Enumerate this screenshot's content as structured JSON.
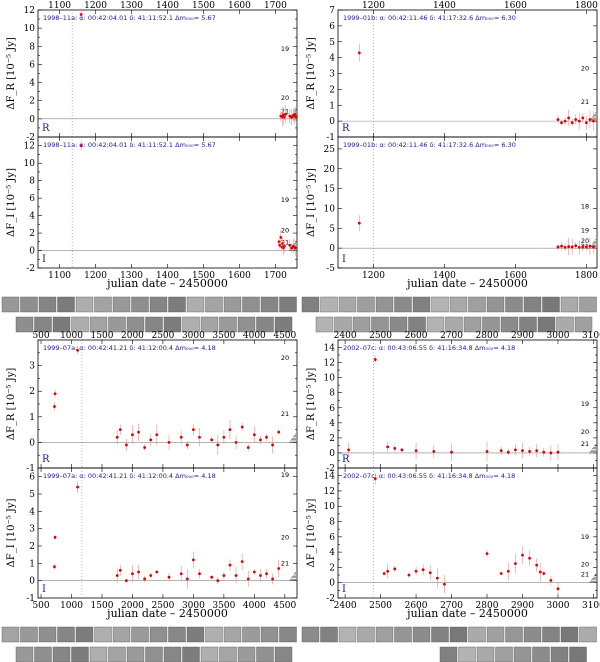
{
  "chart_data": [
    {
      "id": "p1",
      "type": "scatter",
      "title": "",
      "xlabel": "julian date – 2450000",
      "top_ticks": [
        1100,
        1200,
        1300,
        1400,
        1500,
        1600,
        1700
      ],
      "bottom_ticks": [
        1100,
        1200,
        1300,
        1400,
        1500,
        1600,
        1700
      ],
      "xlim": [
        1040,
        1760
      ],
      "event_x": 1135,
      "thumbnails": {
        "top": 16,
        "bottom": 16
      },
      "panels": [
        {
          "band_label": "R",
          "info": "1998–11a:   α: 00:42:04.01   δ: 41:11:52.1   Δm₀₀₀= 5.67",
          "ylabel": "ΔF_R [10⁻⁵ Jy]",
          "ylim": [
            -2,
            12
          ],
          "yticks": [
            -2,
            -1,
            0,
            1,
            2,
            3,
            4,
            5,
            6,
            7,
            8,
            9,
            10,
            11,
            12
          ],
          "ytick_labels": [
            -2,
            0,
            2,
            4,
            6,
            8,
            10,
            12
          ],
          "mag_labels": [
            {
              "text": "19",
              "y": 7.7
            },
            {
              "text": "20",
              "y": 2.3
            },
            {
              "text": "21",
              "y": 0.8
            }
          ],
          "points": [
            [
              1160,
              11.5
            ],
            [
              1715,
              0.3
            ],
            [
              1720,
              0.2
            ],
            [
              1722,
              0.4
            ],
            [
              1725,
              0.2
            ],
            [
              1728,
              0.5
            ],
            [
              1740,
              0.3
            ],
            [
              1745,
              0.2
            ],
            [
              1750,
              0.4
            ],
            [
              1752,
              0.3
            ],
            [
              1755,
              0.5
            ],
            [
              1758,
              0.2
            ]
          ]
        },
        {
          "band_label": "I",
          "info": "1998–11a:   α: 00:42:04.01   δ: 41:11:52.1   Δm₀₀₀= 5.67",
          "ylabel": "ΔF_I [10⁻⁵ Jy]",
          "ylim": [
            -2,
            13
          ],
          "yticks": [
            -2,
            -1,
            0,
            1,
            2,
            3,
            4,
            5,
            6,
            7,
            8,
            9,
            10,
            11,
            12,
            13
          ],
          "ytick_labels": [
            -2,
            0,
            2,
            4,
            6,
            8,
            10,
            12
          ],
          "mag_labels": [
            {
              "text": "19",
              "y": 5.8
            },
            {
              "text": "20",
              "y": 2.3
            },
            {
              "text": "21",
              "y": 0.9
            }
          ],
          "points": [
            [
              1160,
              12.0
            ],
            [
              1710,
              1.0
            ],
            [
              1712,
              0.6
            ],
            [
              1715,
              1.5
            ],
            [
              1718,
              0.4
            ],
            [
              1720,
              0.8
            ],
            [
              1723,
              0.3
            ],
            [
              1725,
              0.5
            ],
            [
              1740,
              0.6
            ],
            [
              1745,
              0.3
            ],
            [
              1750,
              0.5
            ],
            [
              1755,
              0.3
            ]
          ]
        }
      ]
    },
    {
      "id": "p2",
      "type": "scatter",
      "title": "",
      "xlabel": "julian date – 2450000",
      "top_ticks": [
        1200,
        1400,
        1600,
        1800
      ],
      "bottom_ticks": [
        1200,
        1400,
        1600,
        1800
      ],
      "xlim": [
        1100,
        1830
      ],
      "event_x": 1200,
      "thumbnails": {
        "top": 16,
        "bottom": 16
      },
      "panels": [
        {
          "band_label": "R",
          "info": "1999–01b:   α: 00:42:11.46   δ: 41:17:32.6   Δm₀₀₀= 6.30",
          "ylabel": "ΔF_R [10⁻⁵ Jy]",
          "ylim": [
            -1,
            7
          ],
          "yticks": [
            -1,
            0,
            1,
            2,
            3,
            4,
            5,
            6,
            7
          ],
          "ytick_labels": [
            -1,
            0,
            1,
            2,
            3,
            4,
            5,
            6,
            7
          ],
          "mag_labels": [
            {
              "text": "20",
              "y": 3.3
            },
            {
              "text": "21",
              "y": 1.2
            }
          ],
          "points": [
            [
              1160,
              4.3
            ],
            [
              1720,
              0.1
            ],
            [
              1730,
              -0.1
            ],
            [
              1740,
              0.0
            ],
            [
              1750,
              0.2
            ],
            [
              1760,
              -0.1
            ],
            [
              1770,
              0.1
            ],
            [
              1780,
              0.0
            ],
            [
              1790,
              0.2
            ],
            [
              1800,
              -0.1
            ],
            [
              1810,
              0.1
            ],
            [
              1820,
              0.0
            ]
          ]
        },
        {
          "band_label": "I",
          "info": "1999–01b:   α: 00:42:11.46   δ: 41:17:32.6   Δm₀₀₀= 6.30",
          "ylabel": "ΔF_I [10⁻⁵ Jy]",
          "ylim": [
            -5,
            28
          ],
          "yticks": [
            -5,
            0,
            5,
            10,
            15,
            20,
            25
          ],
          "ytick_labels": [
            -5,
            0,
            5,
            10,
            15,
            20,
            25
          ],
          "mag_labels": [
            {
              "text": "18",
              "y": 10.5
            },
            {
              "text": "19",
              "y": 4.5
            },
            {
              "text": "20",
              "y": 1.8
            },
            {
              "text": "21",
              "y": 0.4
            }
          ],
          "points": [
            [
              1160,
              6.3
            ],
            [
              1720,
              0.3
            ],
            [
              1730,
              0.5
            ],
            [
              1740,
              0.2
            ],
            [
              1750,
              0.4
            ],
            [
              1760,
              0.3
            ],
            [
              1770,
              0.6
            ],
            [
              1780,
              0.2
            ],
            [
              1790,
              0.4
            ],
            [
              1800,
              0.3
            ],
            [
              1810,
              0.5
            ],
            [
              1820,
              0.3
            ]
          ]
        }
      ]
    },
    {
      "id": "p3",
      "type": "scatter",
      "title": "",
      "xlabel": "julian date – 2450000",
      "top_ticks": [
        500,
        1000,
        1500,
        2000,
        2500,
        3000,
        3500,
        4000,
        4500
      ],
      "bottom_ticks": [
        500,
        1000,
        1500,
        2000,
        2500,
        3000,
        3500,
        4000,
        4500
      ],
      "xlim": [
        450,
        4700
      ],
      "event_x": 1170,
      "thumbnails": {
        "top": 16,
        "bottom": 16
      },
      "panels": [
        {
          "band_label": "R",
          "info": "1999–07a:   α: 00:42:41.21   δ: 41:12:00.4   Δm₀₀₀= 4.18",
          "ylabel": "ΔF_R [10⁻⁵ Jy]",
          "ylim": [
            -1,
            4
          ],
          "yticks": [
            -1,
            -0.5,
            0,
            0.5,
            1,
            1.5,
            2,
            2.5,
            3,
            3.5,
            4
          ],
          "ytick_labels": [
            -1,
            0,
            1,
            2,
            3
          ],
          "mag_labels": [
            {
              "text": "20",
              "y": 3.3
            },
            {
              "text": "21",
              "y": 1.1
            }
          ],
          "points": [
            [
              720,
              1.4
            ],
            [
              730,
              1.9
            ],
            [
              1100,
              3.6
            ],
            [
              1750,
              0.2
            ],
            [
              1800,
              0.5
            ],
            [
              1900,
              -0.1
            ],
            [
              2000,
              0.3
            ],
            [
              2100,
              0.4
            ],
            [
              2200,
              -0.2
            ],
            [
              2300,
              0.1
            ],
            [
              2400,
              0.3
            ],
            [
              2600,
              0.0
            ],
            [
              2800,
              0.2
            ],
            [
              2900,
              -0.1
            ],
            [
              3000,
              0.5
            ],
            [
              3100,
              0.2
            ],
            [
              3300,
              0.1
            ],
            [
              3400,
              -0.1
            ],
            [
              3500,
              0.2
            ],
            [
              3600,
              0.5
            ],
            [
              3700,
              0.0
            ],
            [
              3800,
              0.6
            ],
            [
              3900,
              -0.2
            ],
            [
              4000,
              0.3
            ],
            [
              4100,
              0.1
            ],
            [
              4200,
              0.2
            ],
            [
              4300,
              -0.1
            ],
            [
              4400,
              0.4
            ]
          ]
        },
        {
          "band_label": "I",
          "info": "1999–07a:   α: 00:42:41.21   δ: 41:12:00.4   Δm₀₀₀= 4.18",
          "ylabel": "ΔF_I [10⁻⁵ Jy]",
          "ylim": [
            -1,
            6.5
          ],
          "yticks": [
            -1,
            0,
            1,
            2,
            3,
            4,
            5,
            6
          ],
          "ytick_labels": [
            -1,
            0,
            1,
            2,
            3,
            4,
            5,
            6
          ],
          "mag_labels": [
            {
              "text": "19",
              "y": 6.1
            },
            {
              "text": "20",
              "y": 2.5
            },
            {
              "text": "21",
              "y": 1.0
            }
          ],
          "points": [
            [
              720,
              0.8
            ],
            [
              730,
              2.5
            ],
            [
              1100,
              5.4
            ],
            [
              1750,
              0.3
            ],
            [
              1800,
              0.6
            ],
            [
              1900,
              0.0
            ],
            [
              2000,
              0.4
            ],
            [
              2100,
              0.5
            ],
            [
              2200,
              0.1
            ],
            [
              2300,
              0.3
            ],
            [
              2400,
              0.5
            ],
            [
              2600,
              0.2
            ],
            [
              2800,
              0.4
            ],
            [
              2900,
              0.1
            ],
            [
              3000,
              1.2
            ],
            [
              3100,
              0.4
            ],
            [
              3300,
              0.2
            ],
            [
              3400,
              0.0
            ],
            [
              3500,
              0.3
            ],
            [
              3600,
              0.9
            ],
            [
              3700,
              0.3
            ],
            [
              3800,
              1.1
            ],
            [
              3900,
              0.1
            ],
            [
              4000,
              0.5
            ],
            [
              4100,
              0.3
            ],
            [
              4200,
              0.4
            ],
            [
              4300,
              0.1
            ],
            [
              4400,
              0.7
            ]
          ]
        }
      ]
    },
    {
      "id": "p4",
      "type": "scatter",
      "title": "",
      "xlabel": "julian date – 2450000",
      "top_ticks": [
        2400,
        2500,
        2600,
        2700,
        2800,
        2900,
        3000,
        3100
      ],
      "bottom_ticks": [
        2400,
        2500,
        2600,
        2700,
        2800,
        2900,
        3000,
        3100
      ],
      "xlim": [
        2380,
        3110
      ],
      "event_x": 2480,
      "thumbnails": {
        "top": 16,
        "bottom": 10
      },
      "panels": [
        {
          "band_label": "R",
          "info": "2002–07c:   α: 00:43:06.55   δ: 41:16:34.8   Δm₀₀₀= 4.18",
          "ylabel": "ΔF_R [10⁻⁵ Jy]",
          "ylim": [
            -2,
            15
          ],
          "yticks": [
            -2,
            -1,
            0,
            1,
            2,
            3,
            4,
            5,
            6,
            7,
            8,
            9,
            10,
            11,
            12,
            13,
            14,
            15
          ],
          "ytick_labels": [
            -2,
            0,
            2,
            4,
            6,
            8,
            10,
            12,
            14
          ],
          "mag_labels": [
            {
              "text": "19",
              "y": 6.5
            },
            {
              "text": "20",
              "y": 2.8
            },
            {
              "text": "21",
              "y": 1.2
            }
          ],
          "points": [
            [
              2410,
              0.4
            ],
            [
              2485,
              12.4
            ],
            [
              2520,
              0.8
            ],
            [
              2540,
              0.6
            ],
            [
              2560,
              0.4
            ],
            [
              2600,
              0.3
            ],
            [
              2650,
              0.2
            ],
            [
              2700,
              0.1
            ],
            [
              2800,
              0.2
            ],
            [
              2840,
              0.3
            ],
            [
              2860,
              0.1
            ],
            [
              2880,
              0.4
            ],
            [
              2900,
              0.3
            ],
            [
              2920,
              0.2
            ],
            [
              2940,
              0.3
            ],
            [
              2960,
              0.1
            ],
            [
              2980,
              0.0
            ],
            [
              3000,
              0.1
            ]
          ]
        },
        {
          "band_label": "I",
          "info": "2002–07c:   α: 00:43:06.55   δ: 41:16:34.8   Δm₀₀₀= 4.18",
          "ylabel": "ΔF_I [10⁻⁵ Jy]",
          "ylim": [
            -2,
            15
          ],
          "yticks": [
            -2,
            -1,
            0,
            1,
            2,
            3,
            4,
            5,
            6,
            7,
            8,
            9,
            10,
            11,
            12,
            13,
            14,
            15
          ],
          "ytick_labels": [
            -2,
            0,
            2,
            4,
            6,
            8,
            10,
            12,
            14
          ],
          "mag_labels": [
            {
              "text": "19",
              "y": 6.0
            },
            {
              "text": "20",
              "y": 2.4
            },
            {
              "text": "21",
              "y": 1.1
            }
          ],
          "points": [
            [
              2485,
              13.6
            ],
            [
              2510,
              1.2
            ],
            [
              2520,
              1.5
            ],
            [
              2540,
              1.8
            ],
            [
              2580,
              1.0
            ],
            [
              2600,
              1.5
            ],
            [
              2620,
              1.7
            ],
            [
              2640,
              1.3
            ],
            [
              2660,
              0.6
            ],
            [
              2680,
              -0.2
            ],
            [
              2800,
              3.8
            ],
            [
              2840,
              1.2
            ],
            [
              2860,
              1.5
            ],
            [
              2880,
              2.5
            ],
            [
              2900,
              3.6
            ],
            [
              2920,
              3.2
            ],
            [
              2940,
              2.3
            ],
            [
              2950,
              1.4
            ],
            [
              2960,
              1.2
            ],
            [
              2980,
              0.3
            ],
            [
              3000,
              -0.8
            ]
          ]
        }
      ]
    }
  ]
}
